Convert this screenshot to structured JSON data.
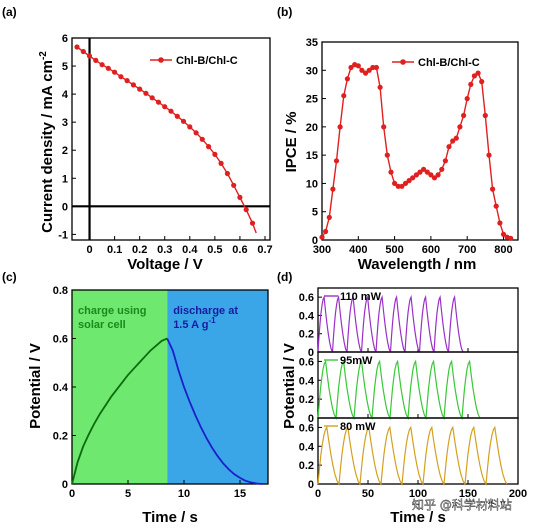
{
  "watermark": "知乎 @科学材料站",
  "chart_data": [
    {
      "id": "a",
      "panel_label": "(a)",
      "type": "line",
      "xlabel": "Voltage / V",
      "ylabel": "Current density / mA cm",
      "ylabel_sup": "-2",
      "xlim": [
        -0.07,
        0.72
      ],
      "ylim": [
        -1.2,
        6
      ],
      "xticks": [
        0,
        0.1,
        0.2,
        0.3,
        0.4,
        0.5,
        0.6,
        0.7
      ],
      "yticks": [
        -1,
        0,
        1,
        2,
        3,
        4,
        5,
        6
      ],
      "zero_lines": true,
      "color": "#e02020",
      "legend": "top-right",
      "series": [
        {
          "name": "Chl-B/Chl-C",
          "x": [
            -0.05,
            -0.025,
            0,
            0.025,
            0.05,
            0.075,
            0.1,
            0.125,
            0.15,
            0.175,
            0.2,
            0.225,
            0.25,
            0.275,
            0.3,
            0.325,
            0.35,
            0.375,
            0.4,
            0.425,
            0.45,
            0.475,
            0.5,
            0.525,
            0.55,
            0.575,
            0.6,
            0.625,
            0.65,
            0.665
          ],
          "y": [
            5.68,
            5.52,
            5.36,
            5.2,
            5.05,
            4.92,
            4.78,
            4.62,
            4.48,
            4.33,
            4.18,
            4.03,
            3.87,
            3.71,
            3.55,
            3.39,
            3.21,
            3.03,
            2.83,
            2.62,
            2.39,
            2.13,
            1.85,
            1.53,
            1.17,
            0.75,
            0.32,
            -0.12,
            -0.6,
            -0.95
          ]
        }
      ]
    },
    {
      "id": "b",
      "panel_label": "(b)",
      "type": "line",
      "xlabel": "Wavelength / nm",
      "ylabel": "IPCE / %",
      "xlim": [
        300,
        840
      ],
      "ylim": [
        0,
        35
      ],
      "xticks": [
        300,
        400,
        500,
        600,
        700,
        800
      ],
      "yticks": [
        0,
        5,
        10,
        15,
        20,
        25,
        30,
        35
      ],
      "color": "#e02020",
      "legend": "top-right",
      "series": [
        {
          "name": "Chl-B/Chl-C",
          "x": [
            300,
            310,
            320,
            330,
            340,
            350,
            360,
            370,
            380,
            390,
            400,
            410,
            420,
            430,
            440,
            450,
            460,
            470,
            480,
            490,
            500,
            510,
            520,
            530,
            540,
            550,
            560,
            570,
            580,
            590,
            600,
            610,
            620,
            630,
            640,
            650,
            660,
            670,
            680,
            690,
            700,
            710,
            720,
            730,
            740,
            750,
            760,
            770,
            780,
            790,
            800,
            810,
            820
          ],
          "y": [
            0.5,
            1.5,
            4,
            9,
            14,
            20,
            25.5,
            28.5,
            30.5,
            31,
            30.8,
            30,
            29.5,
            30,
            30.5,
            30.5,
            27,
            20,
            15,
            12,
            10,
            9.5,
            9.5,
            10,
            10.5,
            11,
            11.5,
            12,
            12.5,
            12,
            11.5,
            11,
            11.5,
            12.5,
            14,
            16.5,
            17.5,
            18,
            20,
            22,
            25,
            27.5,
            29,
            29.5,
            28,
            22,
            15,
            9,
            6,
            3,
            1,
            0.5,
            0.3
          ]
        }
      ]
    },
    {
      "id": "c",
      "panel_label": "(c)",
      "type": "line",
      "xlabel": "Time / s",
      "ylabel": "Potential / V",
      "xlim": [
        0,
        17.5
      ],
      "ylim": [
        0,
        0.8
      ],
      "xticks": [
        0,
        5,
        10,
        15
      ],
      "yticks": [
        0,
        0.2,
        0.4,
        0.6,
        0.8
      ],
      "charge_end": 8.5,
      "charge_region_color": "#6ee86e",
      "discharge_region_color": "#3aa6e8",
      "charge_label": "charge using solar cell",
      "charge_label_lines": [
        "charge using",
        "solar cell"
      ],
      "discharge_label_lines": [
        "discharge at",
        "1.5 A g"
      ],
      "discharge_label_sup": "-1",
      "series": [
        {
          "name": "",
          "color": "#0d6b0d",
          "x": [
            0,
            0.5,
            1,
            1.5,
            2,
            2.5,
            3,
            3.5,
            4,
            4.5,
            5,
            5.5,
            6,
            6.5,
            7,
            7.5,
            8,
            8.5
          ],
          "y": [
            0,
            0.09,
            0.155,
            0.205,
            0.25,
            0.29,
            0.325,
            0.36,
            0.39,
            0.42,
            0.45,
            0.475,
            0.5,
            0.525,
            0.55,
            0.57,
            0.59,
            0.6
          ]
        },
        {
          "name": "",
          "color": "#1e1ec8",
          "x": [
            8.5,
            9,
            9.5,
            10,
            10.5,
            11,
            11.5,
            12,
            12.5,
            13,
            13.5,
            14,
            14.5,
            15,
            15.5,
            16,
            16.5,
            17
          ],
          "y": [
            0.6,
            0.55,
            0.47,
            0.4,
            0.34,
            0.285,
            0.235,
            0.19,
            0.15,
            0.115,
            0.085,
            0.06,
            0.04,
            0.025,
            0.013,
            0.006,
            0.002,
            0
          ]
        }
      ]
    },
    {
      "id": "d",
      "panel_label": "(d)",
      "type": "line",
      "xlabel": "Time / s",
      "ylabel": "Potential / V",
      "xlim": [
        0,
        200
      ],
      "xticks": [
        0,
        50,
        100,
        150,
        200
      ],
      "subplots": [
        {
          "label": "110 mW",
          "color": "#9b30c8",
          "ylim": [
            0,
            0.7
          ],
          "yticks": [
            0,
            0.2,
            0.4,
            0.6
          ],
          "period": 14.5,
          "n_cycles": 10,
          "peak": 0.6
        },
        {
          "label": "95mW",
          "color": "#38c838",
          "ylim": [
            0,
            0.7
          ],
          "yticks": [
            0,
            0.2,
            0.4,
            0.6
          ],
          "period": 18,
          "n_cycles": 9,
          "peak": 0.6
        },
        {
          "label": "80 mW",
          "color": "#d4a020",
          "ylim": [
            0,
            0.7
          ],
          "yticks": [
            0,
            0.2,
            0.4,
            0.6
          ],
          "period": 21,
          "n_cycles": 9,
          "peak": 0.6
        }
      ]
    }
  ]
}
